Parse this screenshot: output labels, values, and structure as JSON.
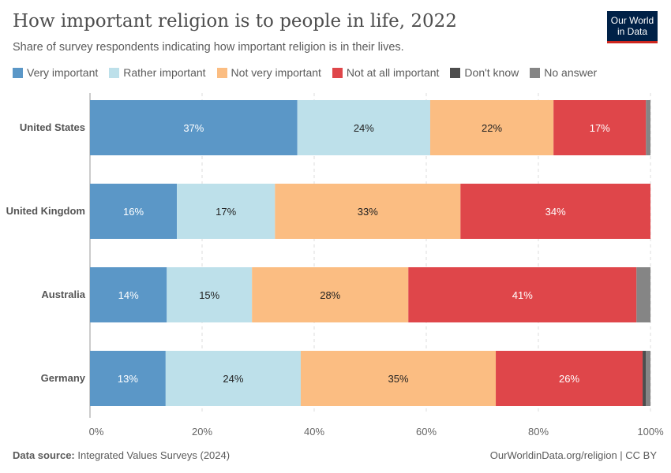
{
  "title": "How important religion is to people in life, 2022",
  "subtitle": "Share of survey respondents indicating how important religion is in their lives.",
  "logo": "Our World in Data",
  "footer": {
    "source_label": "Data source:",
    "source": "Integrated Values Surveys (2024)",
    "right": "OurWorldinData.org/religion | CC BY"
  },
  "chart_data": {
    "type": "bar",
    "orientation": "horizontal",
    "stacked": true,
    "title": "How important religion is to people in life, 2022",
    "categories": [
      "United States",
      "United Kingdom",
      "Australia",
      "Germany"
    ],
    "xlim": [
      0,
      100
    ],
    "xticks": [
      "0%",
      "20%",
      "40%",
      "60%",
      "80%",
      "100%"
    ],
    "grid": "vertical dashed",
    "legend": "top",
    "series": [
      {
        "name": "Very important",
        "color": "#5b97c7",
        "text": "#fff",
        "values": [
          37.0,
          15.5,
          13.7,
          13.5
        ],
        "labels": [
          "37%",
          "16%",
          "14%",
          "13%"
        ]
      },
      {
        "name": "Rather important",
        "color": "#bde0ea",
        "text": "#222",
        "values": [
          23.7,
          17.5,
          15.2,
          24.1
        ],
        "labels": [
          "24%",
          "17%",
          "15%",
          "24%"
        ]
      },
      {
        "name": "Not very important",
        "color": "#fbbd82",
        "text": "#222",
        "values": [
          22.0,
          33.1,
          27.9,
          34.8
        ],
        "labels": [
          "22%",
          "33%",
          "28%",
          "35%"
        ]
      },
      {
        "name": "Not at all important",
        "color": "#df464a",
        "text": "#fff",
        "values": [
          16.5,
          33.9,
          40.7,
          26.2
        ],
        "labels": [
          "17%",
          "34%",
          "41%",
          "26%"
        ]
      },
      {
        "name": "Don't know",
        "color": "#4d4d4d",
        "text": "#fff",
        "values": [
          0,
          0,
          0,
          0.6
        ],
        "labels": [
          "",
          "",
          "",
          ""
        ]
      },
      {
        "name": "No answer",
        "color": "#858585",
        "text": "#fff",
        "values": [
          0.8,
          0,
          2.5,
          0.8
        ],
        "labels": [
          "",
          "",
          "",
          ""
        ]
      }
    ]
  }
}
